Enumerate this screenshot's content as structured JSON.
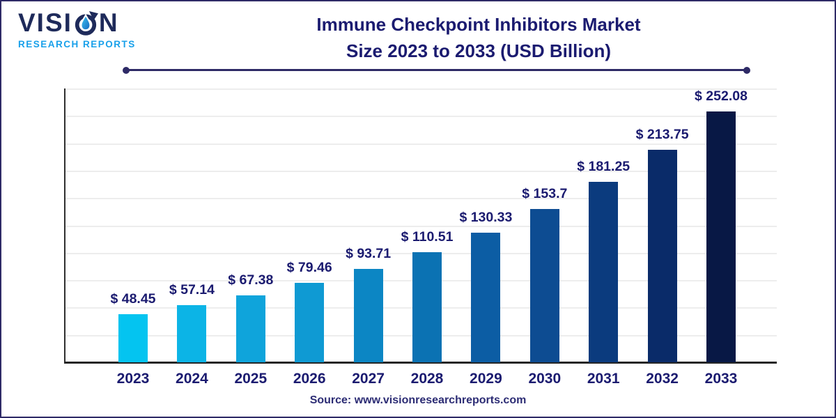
{
  "page": {
    "background": "#ffffff",
    "border_color": "#2e2a66"
  },
  "logo": {
    "brand": "VISION",
    "brand_prefix": "VISI",
    "brand_suffix": "N",
    "subtitle": "RESEARCH REPORTS",
    "brand_color": "#1e2a5a",
    "subtitle_color": "#18a0ea",
    "o_icon": "droplet-arrow-icon"
  },
  "header": {
    "title_line1": "Immune Checkpoint Inhibitors Market",
    "title_line2": "Size 2023 to 2033 (USD Billion)",
    "title_color": "#1b1b70"
  },
  "footer": {
    "source_text": "Source: www.visionresearchreports.com"
  },
  "chart_data": {
    "type": "bar",
    "title": "Immune Checkpoint Inhibitors Market Size 2023 to 2033 (USD Billion)",
    "unit": "USD Billion",
    "categories": [
      "2023",
      "2024",
      "2025",
      "2026",
      "2027",
      "2028",
      "2029",
      "2030",
      "2031",
      "2032",
      "2033"
    ],
    "values": [
      48.45,
      57.14,
      67.38,
      79.46,
      93.71,
      110.51,
      130.33,
      153.7,
      181.25,
      213.75,
      252.08
    ],
    "labels": [
      "$ 48.45",
      "$ 57.14",
      "$ 67.38",
      "$ 79.46",
      "$ 93.71",
      "$ 110.51",
      "$ 130.33",
      "$ 153.7",
      "$ 181.25",
      "$ 213.75",
      "$ 252.08"
    ],
    "bar_colors": [
      "#04C4F0",
      "#0CB4E6",
      "#0FA4DB",
      "#0F9AD3",
      "#0C86C4",
      "#0B72B3",
      "#0C5DA4",
      "#0D4C92",
      "#0B3B7E",
      "#0A2B69",
      "#081845"
    ],
    "xlabel": "",
    "ylabel": "",
    "ylim": [
      0,
      275
    ],
    "grid": true,
    "gridline_count": 10,
    "gridline_color": "#ededed",
    "axis_color": "#2b2b2b",
    "label_color": "#1b1b70",
    "legend": false
  }
}
